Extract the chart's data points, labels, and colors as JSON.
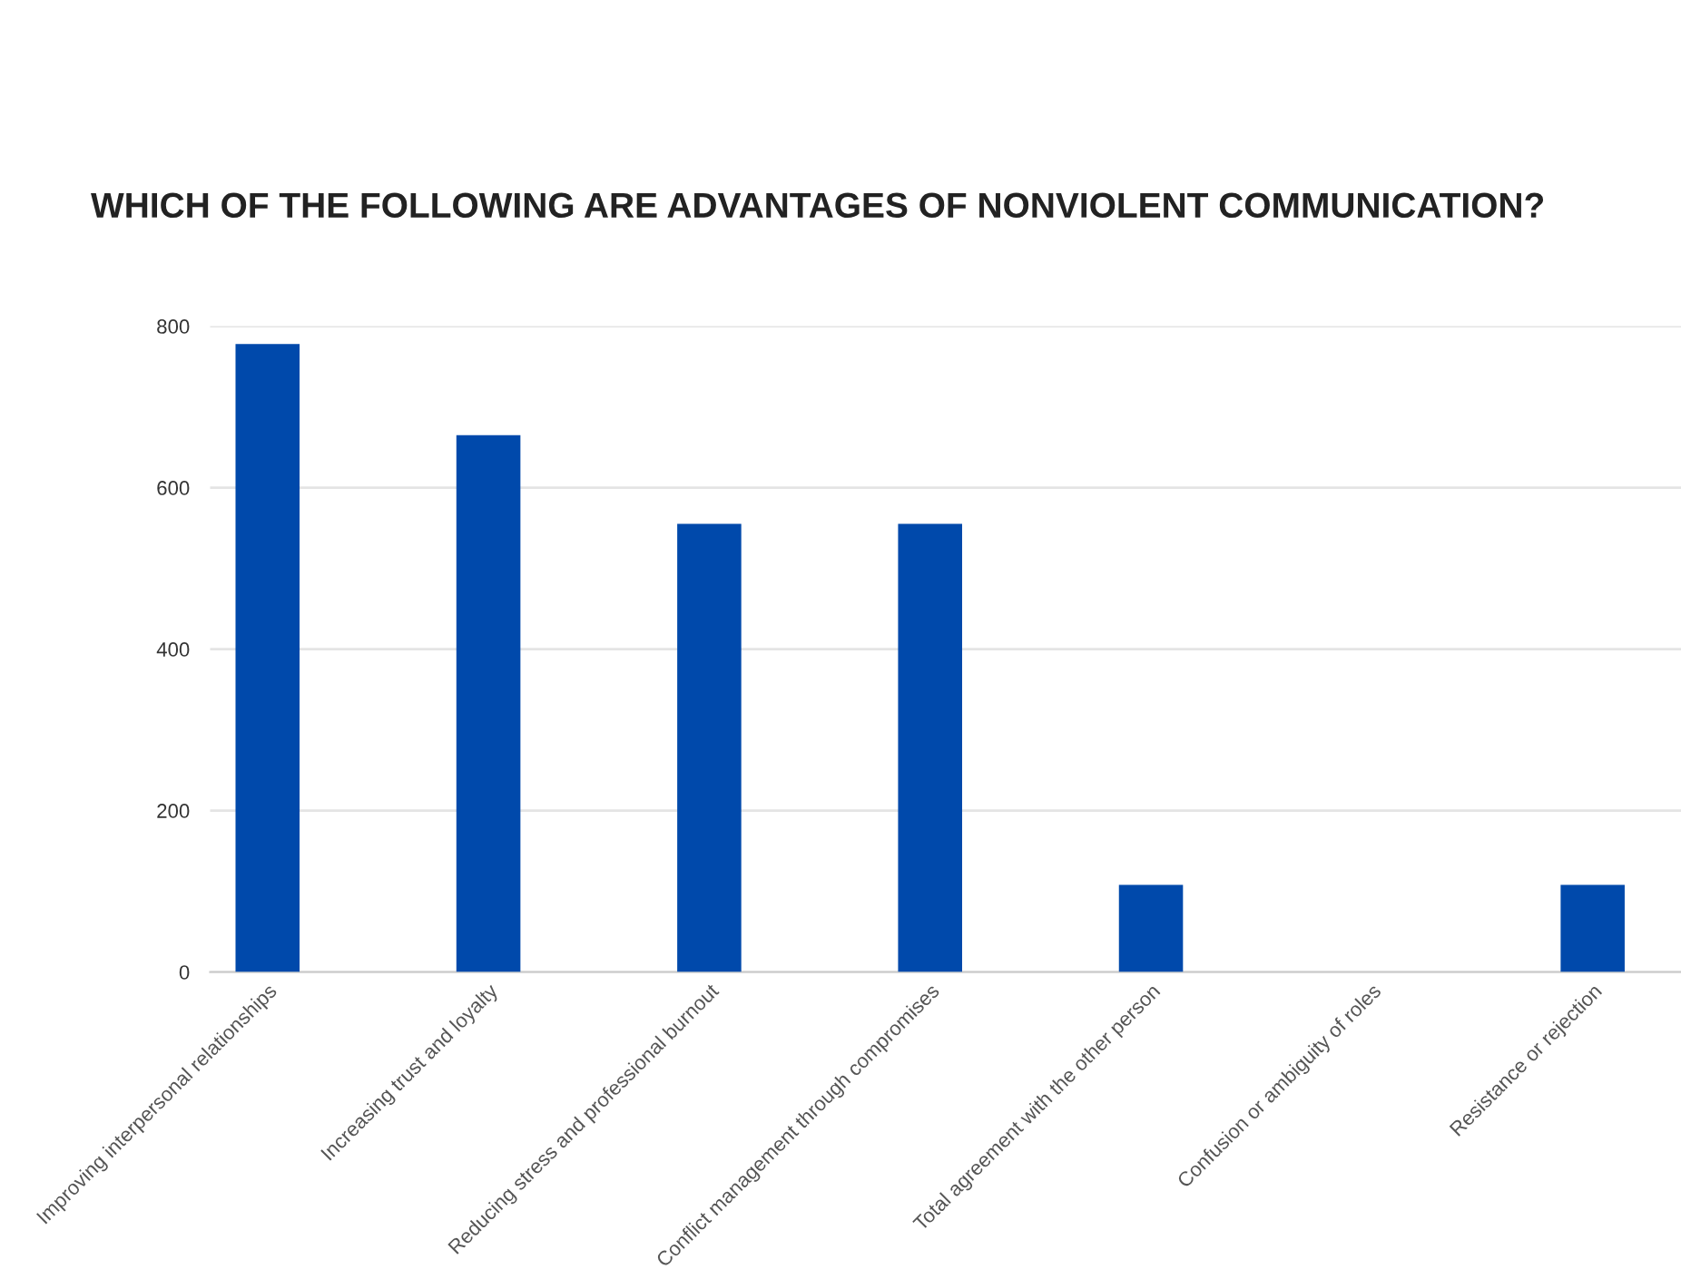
{
  "chart_data": {
    "type": "bar",
    "title": "WHICH OF THE FOLLOWING ARE ADVANTAGES OF NONVIOLENT COMMUNICATION?",
    "categories": [
      "Improving interpersonal relationships",
      "Increasing trust and loyalty",
      "Reducing stress and professional burnout",
      "Conflict management through compromises",
      "Total agreement with the other person",
      "Confusion or ambiguity of roles",
      "Resistance or rejection"
    ],
    "values": [
      778,
      665,
      555,
      555,
      108,
      0,
      108
    ],
    "color": "#0049ab",
    "ylim": [
      0,
      800
    ],
    "yticks": [
      0,
      200,
      400,
      600,
      800
    ],
    "grid": "y"
  }
}
